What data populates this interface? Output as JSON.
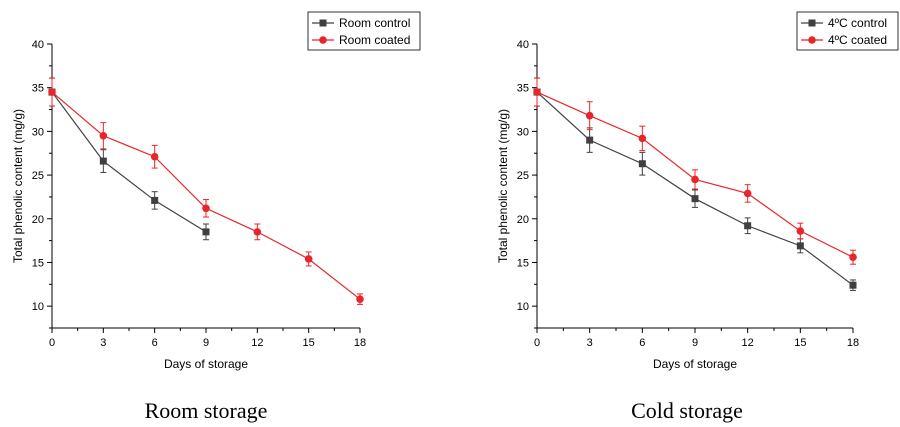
{
  "chart_data": [
    {
      "type": "line",
      "xlabel": "Days of storage",
      "ylabel": "Total phenolic content (mg/g)",
      "xticks": [
        0,
        3,
        6,
        9,
        12,
        15,
        18
      ],
      "yticks": [
        10,
        15,
        20,
        25,
        30,
        35,
        40
      ],
      "xlim": [
        0,
        18
      ],
      "ylim": [
        7.5,
        40
      ],
      "legend_position": "top-right",
      "caption": "Room storage",
      "series": [
        {
          "name": "Room control",
          "color": "#404040",
          "marker": "square",
          "x": [
            0,
            3,
            6,
            9
          ],
          "y": [
            34.5,
            26.6,
            22.1,
            18.5
          ],
          "err": [
            1.6,
            1.3,
            1.0,
            0.9
          ]
        },
        {
          "name": "Room coated",
          "color": "#e8262a",
          "marker": "circle",
          "x": [
            0,
            3,
            6,
            9,
            12,
            15,
            18
          ],
          "y": [
            34.5,
            29.5,
            27.1,
            21.2,
            18.5,
            15.4,
            10.8
          ],
          "err": [
            1.6,
            1.5,
            1.3,
            1.0,
            0.9,
            0.8,
            0.6
          ]
        }
      ]
    },
    {
      "type": "line",
      "xlabel": "Days of storage",
      "ylabel": "Total phenolic content (mg/g)",
      "xticks": [
        0,
        3,
        6,
        9,
        12,
        15,
        18
      ],
      "yticks": [
        10,
        15,
        20,
        25,
        30,
        35,
        40
      ],
      "xlim": [
        0,
        18
      ],
      "ylim": [
        7.5,
        40
      ],
      "legend_position": "top-right",
      "caption": "Cold storage",
      "series": [
        {
          "name": "4ºC control",
          "color": "#404040",
          "marker": "square",
          "x": [
            0,
            3,
            6,
            9,
            12,
            15,
            18
          ],
          "y": [
            34.5,
            29.0,
            26.3,
            22.3,
            19.2,
            16.9,
            12.4
          ],
          "err": [
            1.6,
            1.4,
            1.3,
            1.0,
            0.9,
            0.8,
            0.6
          ]
        },
        {
          "name": "4ºC coated",
          "color": "#e8262a",
          "marker": "circle",
          "x": [
            0,
            3,
            6,
            9,
            12,
            15,
            18
          ],
          "y": [
            34.5,
            31.8,
            29.2,
            24.5,
            22.9,
            18.6,
            15.6
          ],
          "err": [
            1.6,
            1.6,
            1.4,
            1.1,
            1.0,
            0.9,
            0.8
          ]
        }
      ]
    }
  ]
}
